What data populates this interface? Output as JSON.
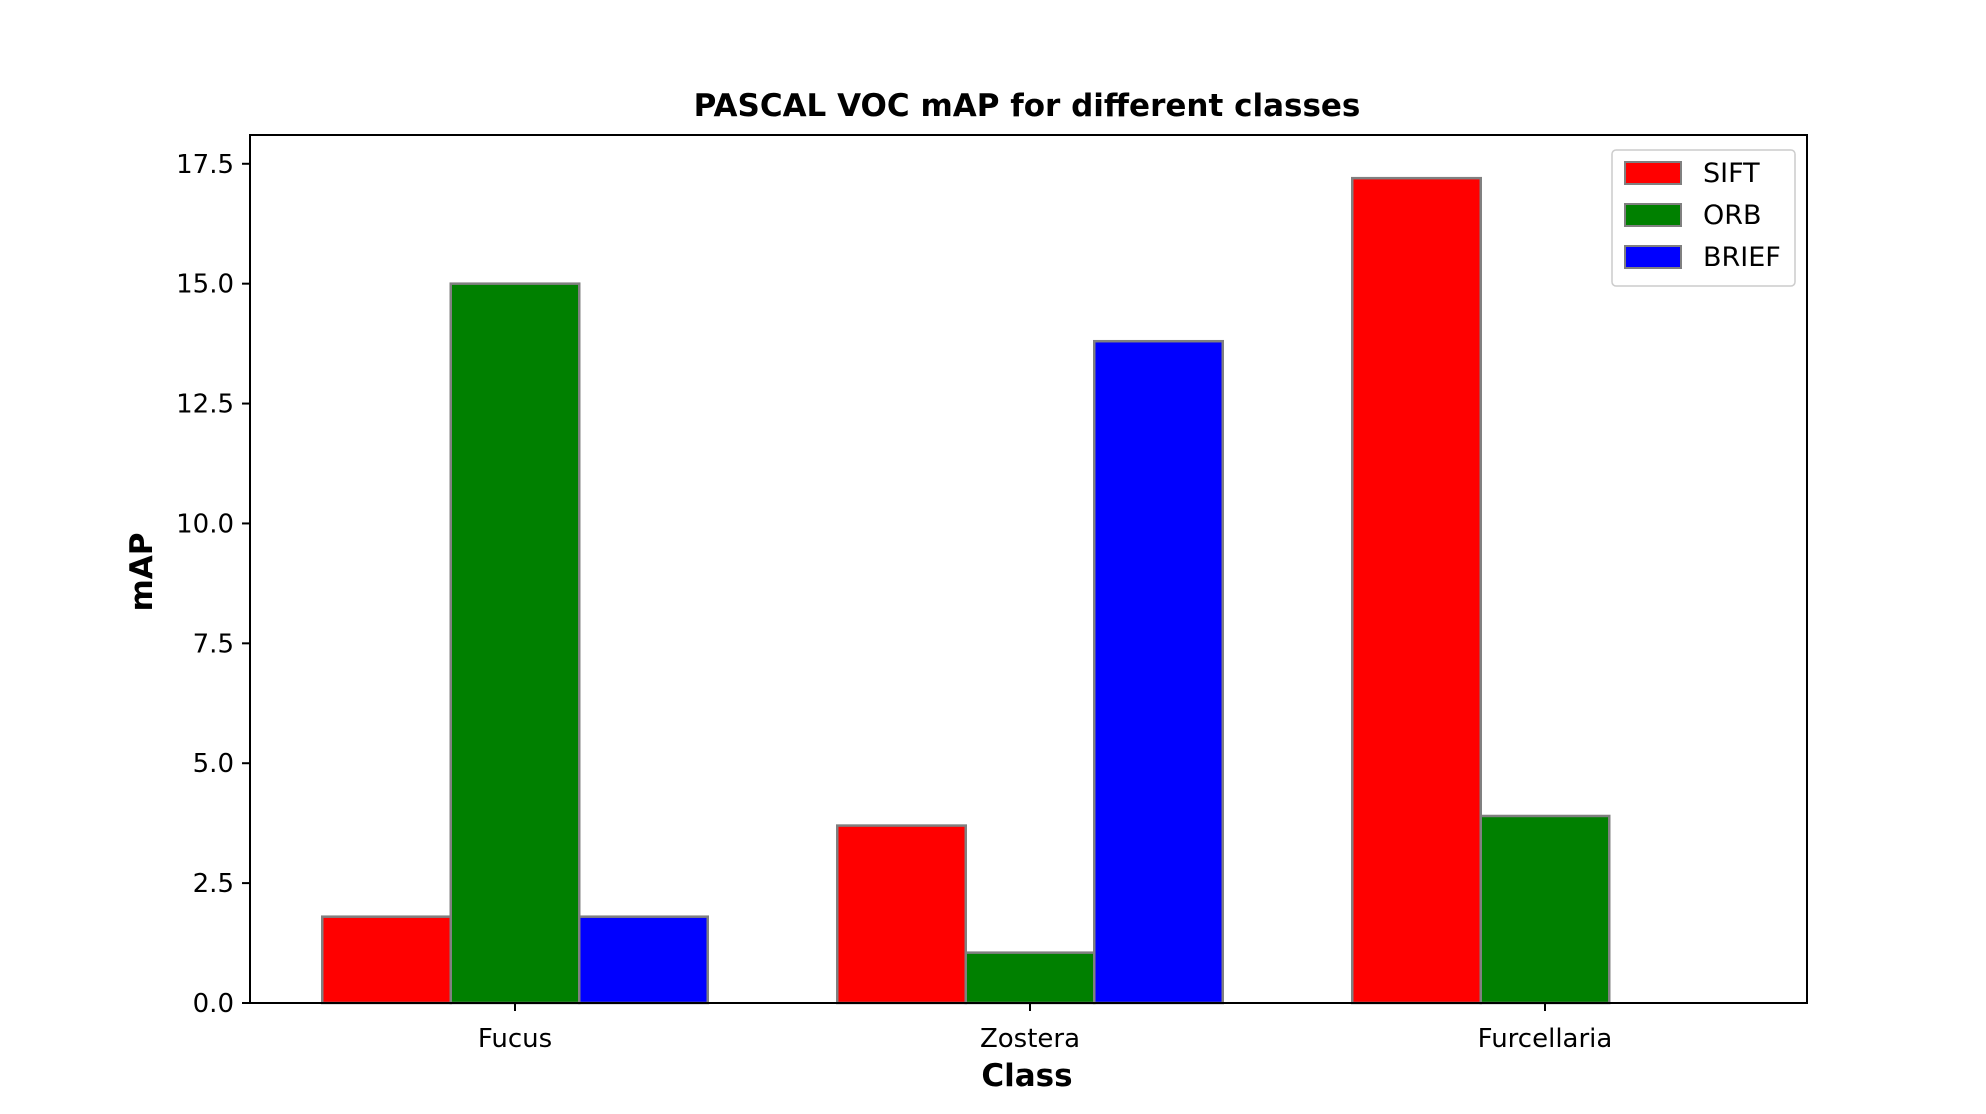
{
  "chart_data": {
    "type": "bar",
    "title": "PASCAL VOC mAP for different classes",
    "xlabel": "Class",
    "ylabel": "mAP",
    "categories": [
      "Fucus",
      "Zostera",
      "Furcellaria"
    ],
    "series": [
      {
        "name": "SIFT",
        "color": "#ff0000",
        "values": [
          1.8,
          3.7,
          17.2
        ]
      },
      {
        "name": "ORB",
        "color": "#008000",
        "values": [
          15.0,
          1.05,
          3.9
        ]
      },
      {
        "name": "BRIEF",
        "color": "#0000ff",
        "values": [
          1.8,
          13.8,
          0
        ]
      }
    ],
    "ylim": [
      0,
      18.1
    ],
    "yticks": [
      0.0,
      2.5,
      5.0,
      7.5,
      10.0,
      12.5,
      15.0,
      17.5
    ],
    "ytick_labels": [
      "0.0",
      "2.5",
      "5.0",
      "7.5",
      "10.0",
      "12.5",
      "15.0",
      "17.5"
    ],
    "bar_edge_color": "#808080",
    "grid": false,
    "legend_position": "top-right"
  }
}
